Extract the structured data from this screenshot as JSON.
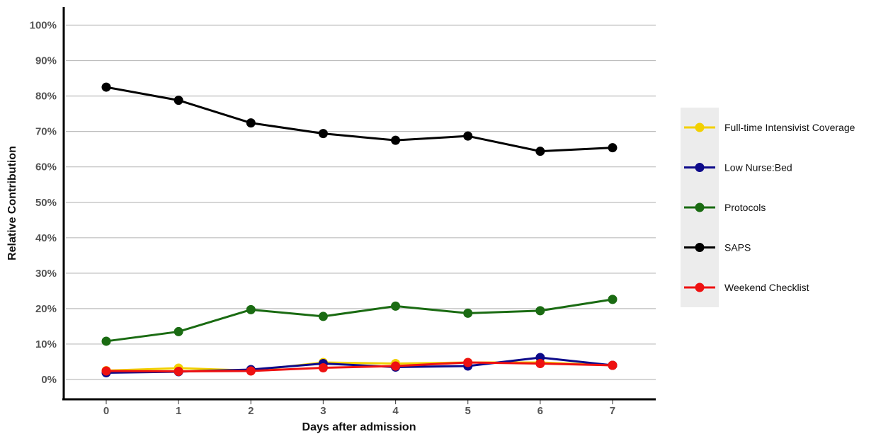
{
  "chart_data": {
    "type": "line",
    "xlabel": "Days after admission",
    "ylabel": "Relative Contribution",
    "x": [
      0,
      1,
      2,
      3,
      4,
      5,
      6,
      7
    ],
    "ylim": [
      0,
      100
    ],
    "y_ticks": [
      "0%",
      "10%",
      "20%",
      "30%",
      "40%",
      "50%",
      "60%",
      "70%",
      "80%",
      "90%",
      "100%"
    ],
    "grid": "horizontal",
    "legend_position": "right",
    "series": [
      {
        "name": "Full-time Intensivist Coverage",
        "color": "#f2d000",
        "values": [
          2.5,
          3.2,
          2.5,
          4.8,
          4.5,
          4.8,
          4.8,
          4.0
        ]
      },
      {
        "name": "Low Nurse:Bed",
        "color": "#0d0a8a",
        "values": [
          1.9,
          2.2,
          2.8,
          4.5,
          3.5,
          3.8,
          6.2,
          4.0
        ]
      },
      {
        "name": "Protocols",
        "color": "#1a6b12",
        "values": [
          10.8,
          13.5,
          19.7,
          17.8,
          20.7,
          18.7,
          19.4,
          22.6
        ]
      },
      {
        "name": "SAPS",
        "color": "#000000",
        "values": [
          82.5,
          78.8,
          72.4,
          69.4,
          67.5,
          68.7,
          64.4,
          65.4
        ]
      },
      {
        "name": "Weekend Checklist",
        "color": "#ee1111",
        "values": [
          2.4,
          2.3,
          2.4,
          3.3,
          3.8,
          4.8,
          4.5,
          4.0
        ]
      }
    ],
    "draw_order": [
      3,
      2,
      0,
      1,
      4
    ]
  }
}
